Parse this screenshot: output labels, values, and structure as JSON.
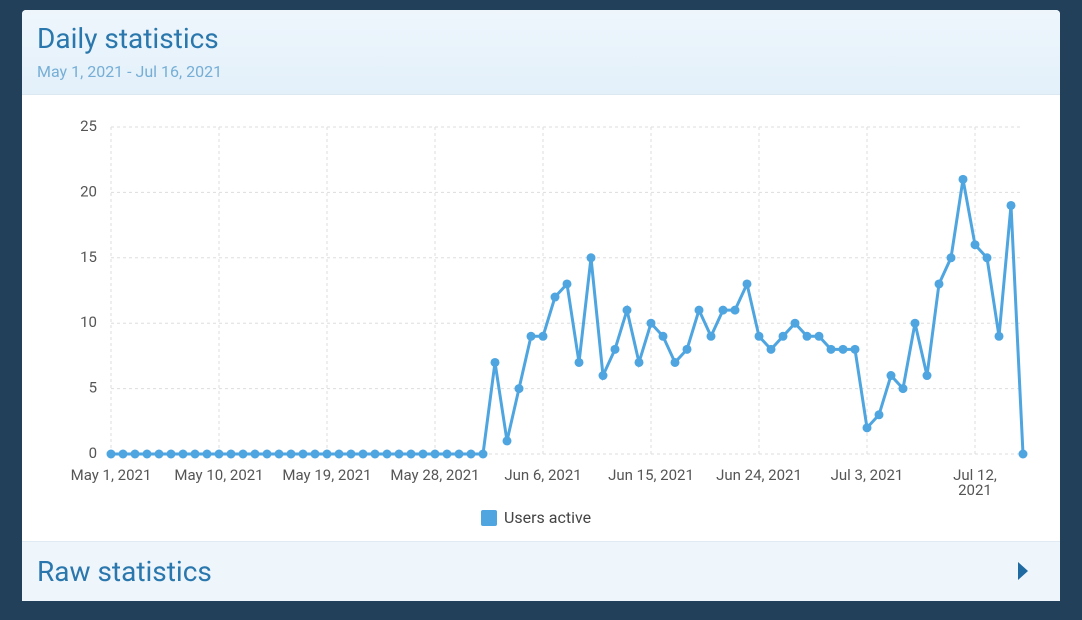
{
  "header": {
    "title": "Daily statistics",
    "subtitle": "May 1, 2021 - Jul 16, 2021"
  },
  "chart_data": {
    "type": "line",
    "x": [
      "2021-05-01",
      "2021-05-02",
      "2021-05-03",
      "2021-05-04",
      "2021-05-05",
      "2021-05-06",
      "2021-05-07",
      "2021-05-08",
      "2021-05-09",
      "2021-05-10",
      "2021-05-11",
      "2021-05-12",
      "2021-05-13",
      "2021-05-14",
      "2021-05-15",
      "2021-05-16",
      "2021-05-17",
      "2021-05-18",
      "2021-05-19",
      "2021-05-20",
      "2021-05-21",
      "2021-05-22",
      "2021-05-23",
      "2021-05-24",
      "2021-05-25",
      "2021-05-26",
      "2021-05-27",
      "2021-05-28",
      "2021-05-29",
      "2021-05-30",
      "2021-05-31",
      "2021-06-01",
      "2021-06-02",
      "2021-06-03",
      "2021-06-04",
      "2021-06-05",
      "2021-06-06",
      "2021-06-07",
      "2021-06-08",
      "2021-06-09",
      "2021-06-10",
      "2021-06-11",
      "2021-06-12",
      "2021-06-13",
      "2021-06-14",
      "2021-06-15",
      "2021-06-16",
      "2021-06-17",
      "2021-06-18",
      "2021-06-19",
      "2021-06-20",
      "2021-06-21",
      "2021-06-22",
      "2021-06-23",
      "2021-06-24",
      "2021-06-25",
      "2021-06-26",
      "2021-06-27",
      "2021-06-28",
      "2021-06-29",
      "2021-06-30",
      "2021-07-01",
      "2021-07-02",
      "2021-07-03",
      "2021-07-04",
      "2021-07-05",
      "2021-07-06",
      "2021-07-07",
      "2021-07-08",
      "2021-07-09",
      "2021-07-10",
      "2021-07-11",
      "2021-07-12",
      "2021-07-13",
      "2021-07-14",
      "2021-07-15",
      "2021-07-16"
    ],
    "series": [
      {
        "name": "Users active",
        "color": "#4ea5e0",
        "values": [
          0,
          0,
          0,
          0,
          0,
          0,
          0,
          0,
          0,
          0,
          0,
          0,
          0,
          0,
          0,
          0,
          0,
          0,
          0,
          0,
          0,
          0,
          0,
          0,
          0,
          0,
          0,
          0,
          0,
          0,
          0,
          0,
          7,
          1,
          5,
          9,
          9,
          12,
          13,
          7,
          15,
          6,
          8,
          11,
          7,
          10,
          9,
          7,
          8,
          11,
          9,
          11,
          11,
          13,
          9,
          8,
          9,
          10,
          9,
          9,
          8,
          8,
          8,
          2,
          3,
          6,
          5,
          10,
          6,
          13,
          15,
          21,
          16,
          15,
          9,
          19,
          0
        ]
      }
    ],
    "xlim": [
      "2021-05-01",
      "2021-07-16"
    ],
    "xticks": [
      {
        "value": "2021-05-01",
        "label": "May 1, 2021"
      },
      {
        "value": "2021-05-10",
        "label": "May 10, 2021"
      },
      {
        "value": "2021-05-19",
        "label": "May 19, 2021"
      },
      {
        "value": "2021-05-28",
        "label": "May 28, 2021"
      },
      {
        "value": "2021-06-06",
        "label": "Jun 6, 2021"
      },
      {
        "value": "2021-06-15",
        "label": "Jun 15, 2021"
      },
      {
        "value": "2021-06-24",
        "label": "Jun 24, 2021"
      },
      {
        "value": "2021-07-03",
        "label": "Jul 3, 2021"
      },
      {
        "value": "2021-07-12",
        "label": "Jul 12, 2021"
      }
    ],
    "ylim": [
      0,
      25
    ],
    "yticks": [
      0,
      5,
      10,
      15,
      20,
      25
    ],
    "grid": true,
    "legend": "bottom"
  },
  "raw_section": {
    "title": "Raw statistics"
  }
}
